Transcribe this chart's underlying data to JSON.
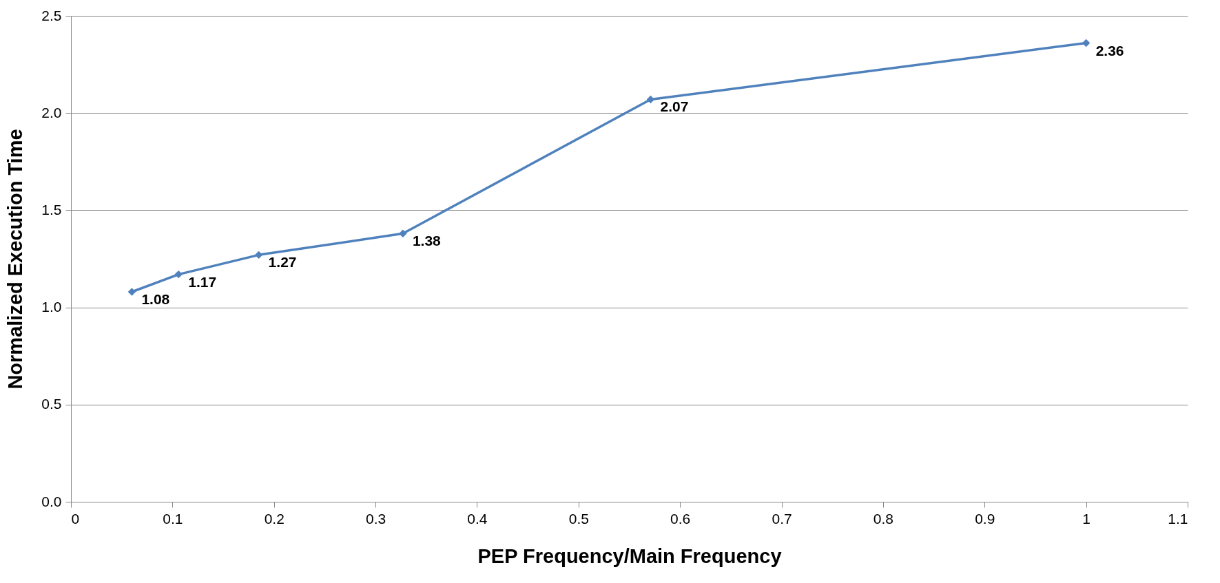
{
  "chart_data": {
    "type": "line",
    "xlabel": "PEP Frequency/Main Frequency",
    "ylabel": "Normalized Execution Time",
    "x": [
      0.06,
      0.106,
      0.185,
      0.327,
      0.571,
      1.0
    ],
    "series": [
      {
        "color": "#4f81bd",
        "values": [
          1.08,
          1.17,
          1.27,
          1.38,
          2.07,
          2.36
        ]
      }
    ],
    "xlim": [
      0,
      1.1
    ],
    "xticks": [
      0,
      0.1,
      0.2,
      0.3,
      0.4,
      0.5,
      0.6,
      0.7,
      0.8,
      0.9,
      1,
      1.1
    ],
    "ylim": [
      0,
      2.5
    ],
    "yticks": [
      {
        "value": 0,
        "label": "0.0"
      },
      {
        "value": 0.5,
        "label": "0.5"
      },
      {
        "value": 1,
        "label": "1.0"
      },
      {
        "value": 1.5,
        "label": "1.5"
      },
      {
        "value": 2,
        "label": "2.0"
      },
      {
        "value": 2.5,
        "label": "2.5"
      }
    ],
    "grid": "y",
    "marker": "diamond",
    "line_style": "solid",
    "data_labels": true
  }
}
